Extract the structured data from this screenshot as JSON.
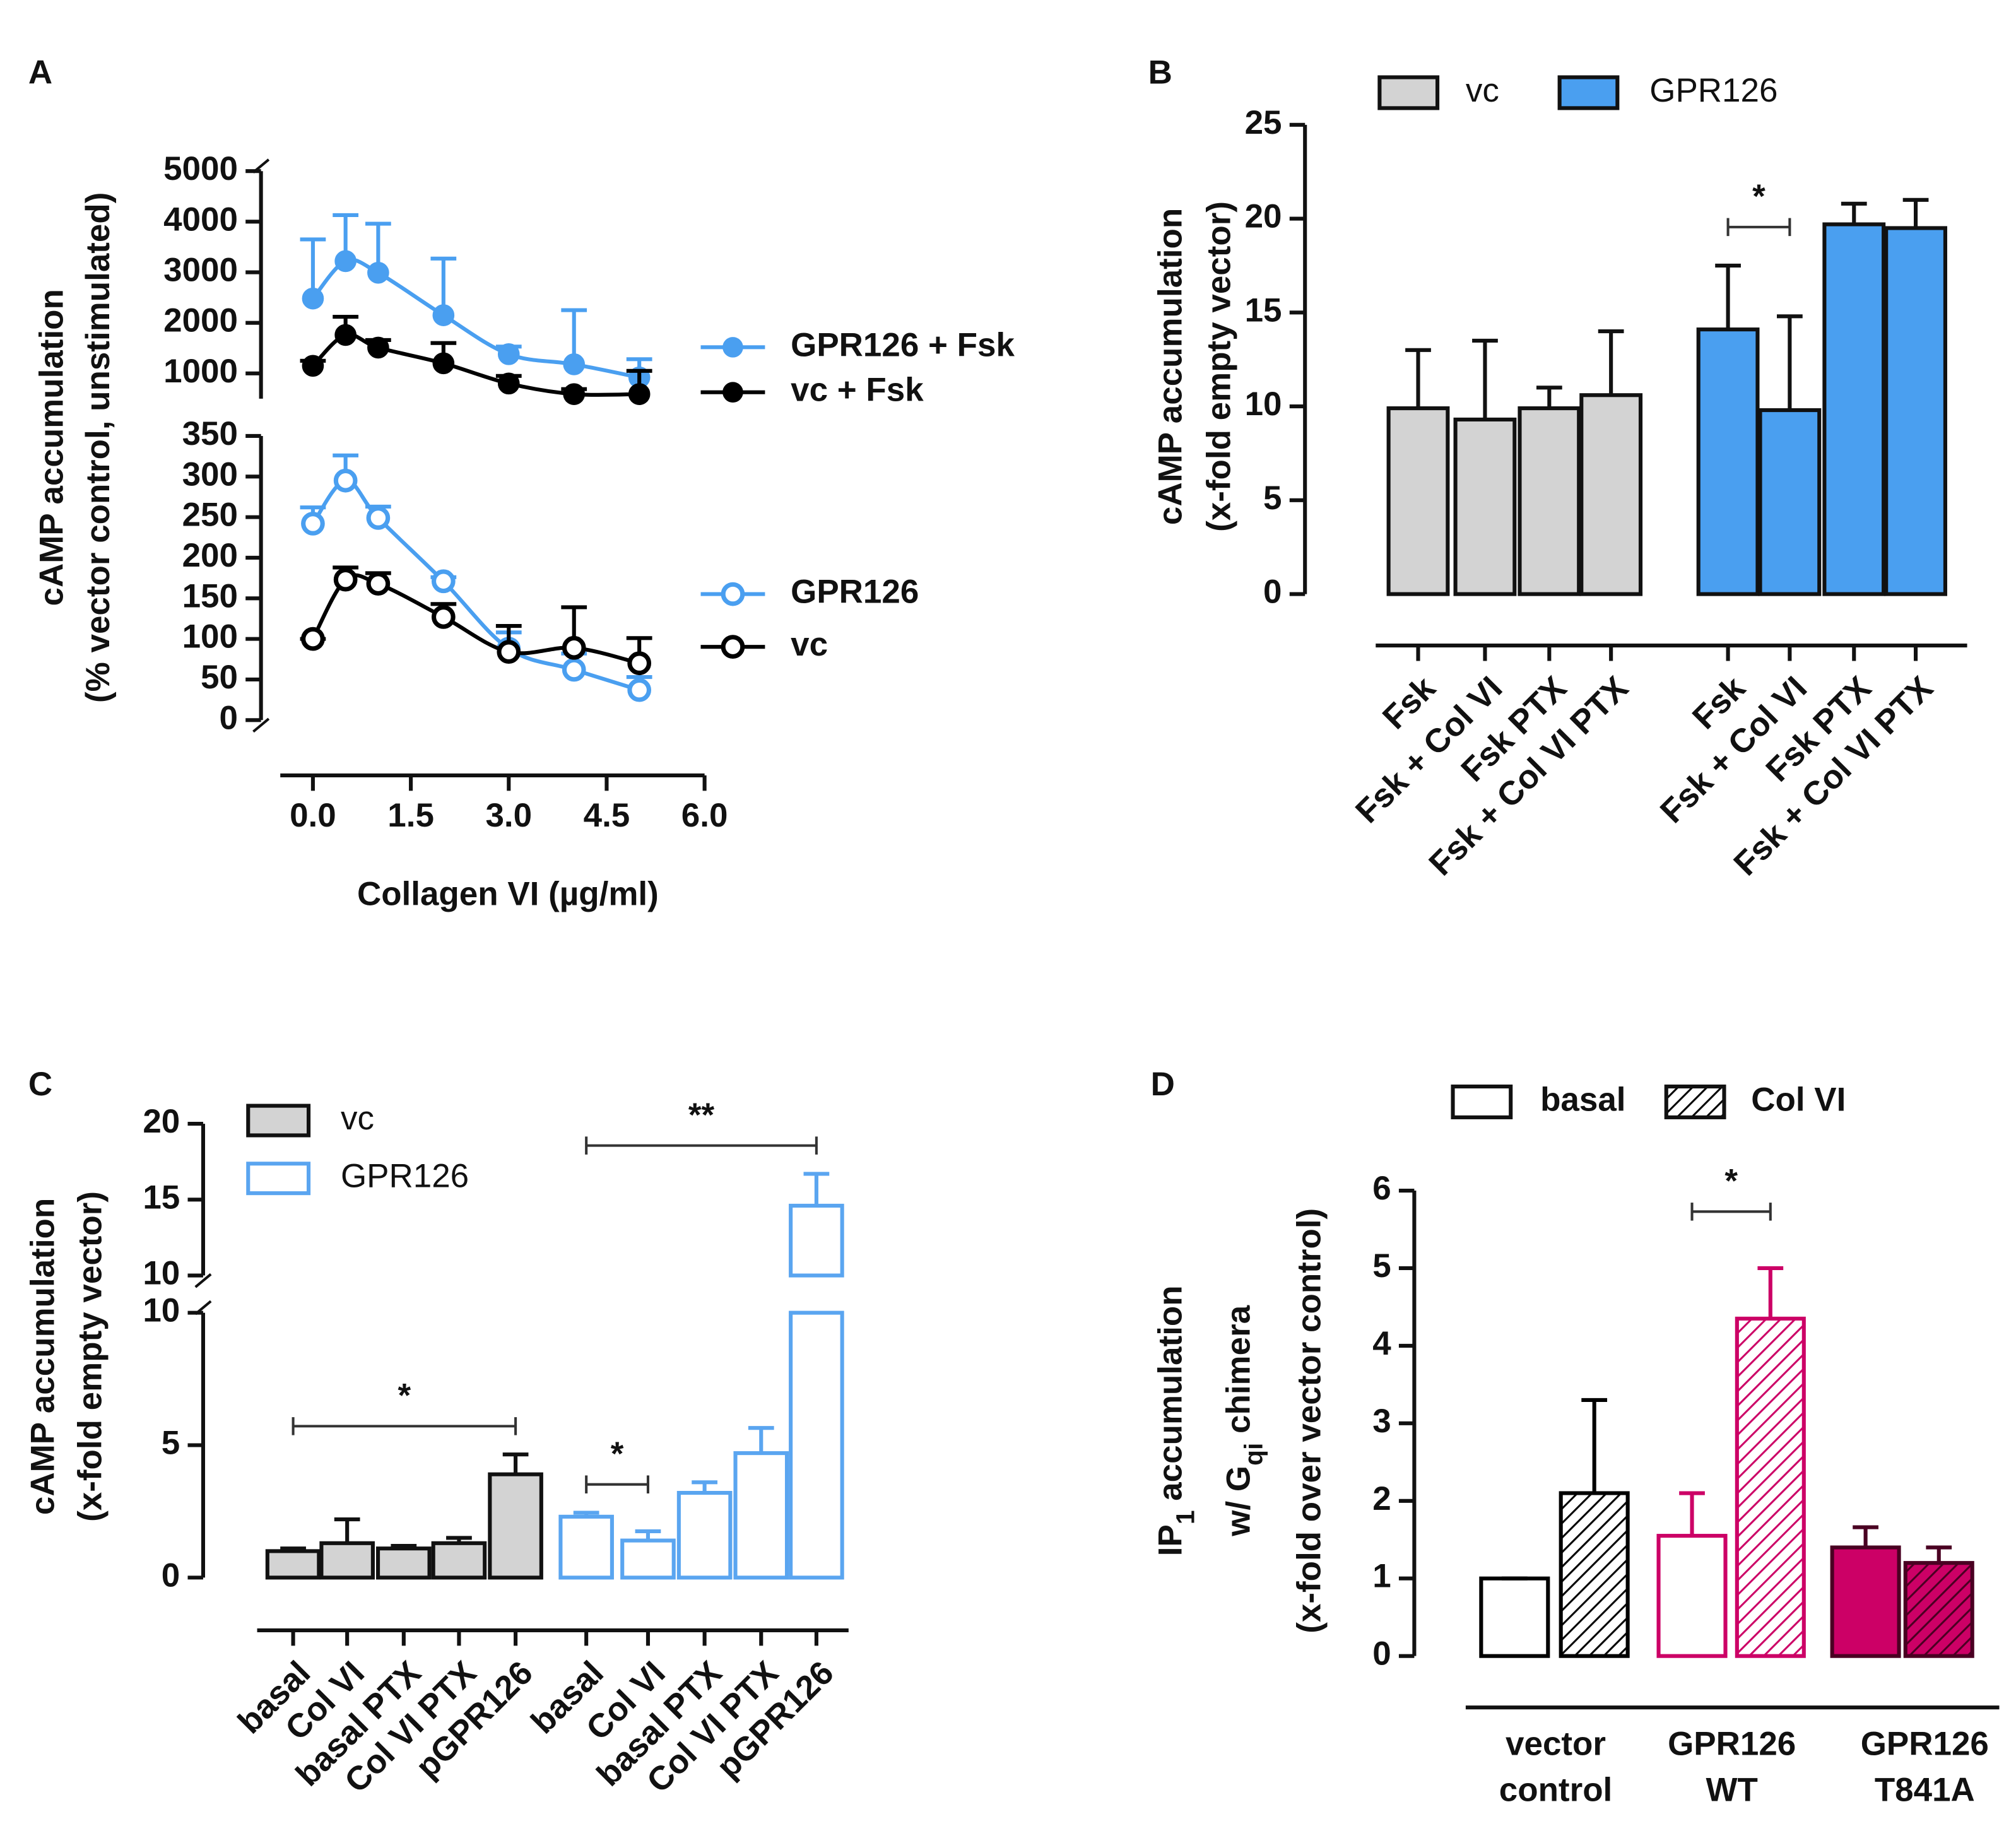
{
  "chart_data": [
    {
      "type": "scatter",
      "panel": "A",
      "y_label": [
        "cAMP accumulation",
        "(% vector control, unstimulated)"
      ],
      "x_label": "Collagen VI (µg/ml)",
      "x": [
        0,
        0.5,
        1,
        2,
        3,
        4,
        5
      ],
      "xlim": [
        -0.5,
        6
      ],
      "xticks": [
        {
          "value": 0,
          "label": "0.0"
        },
        {
          "value": 1.5,
          "label": "1.5"
        },
        {
          "value": 3,
          "label": "3.0"
        },
        {
          "value": 4.5,
          "label": "4.5"
        },
        {
          "value": 6,
          "label": "6.0"
        }
      ],
      "segments": [
        {
          "ylim": [
            500,
            5000
          ],
          "yticks": [
            1000,
            2000,
            3000,
            4000,
            5000
          ],
          "series": [
            {
              "name": "GPR126 + Fsk",
              "color": "#4a9ff0",
              "filled": true,
              "values": [
                2480,
                3220,
                2990,
                2150,
                1380,
                1180,
                920
              ],
              "errors": [
                1170,
                910,
                970,
                1120,
                150,
                1070,
                360
              ]
            },
            {
              "name": "vc + Fsk",
              "color": "#000000",
              "filled": true,
              "values": [
                1150,
                1760,
                1510,
                1200,
                800,
                590,
                590
              ],
              "errors": [
                100,
                360,
                150,
                400,
                150,
                100,
                460
              ]
            }
          ]
        },
        {
          "ylim": [
            0,
            350
          ],
          "yticks": [
            0,
            50,
            100,
            150,
            200,
            250,
            300,
            350
          ],
          "series": [
            {
              "name": "GPR126",
              "color": "#4a9ff0",
              "filled": false,
              "values": [
                242,
                295,
                249,
                171,
                88,
                62,
                37
              ],
              "errors": [
                20,
                31,
                14,
                5,
                20,
                20,
                16
              ]
            },
            {
              "name": "vc",
              "color": "#000000",
              "filled": false,
              "values": [
                100,
                173,
                168,
                127,
                84,
                89,
                70
              ],
              "errors": [
                0,
                15,
                13,
                16,
                32,
                50,
                31
              ]
            }
          ]
        }
      ]
    },
    {
      "type": "bar",
      "panel": "B",
      "y_label": [
        "cAMP accumulation",
        "(x-fold empty vector)"
      ],
      "categories": [
        "Fsk",
        "Fsk + Col VI",
        "Fsk PTX",
        "Fsk + Col VI PTX"
      ],
      "segments": [
        {
          "ylim": [
            0,
            25
          ],
          "yticks": [
            0,
            5,
            10,
            15,
            20,
            25
          ]
        }
      ],
      "series": [
        {
          "name": "vc",
          "color": "#d3d3d3",
          "filled": true,
          "values": [
            9.9,
            9.3,
            9.9,
            10.6
          ],
          "errors": [
            3.1,
            4.2,
            1.1,
            3.4
          ]
        },
        {
          "name": "GPR126",
          "color": "#4a9ff0",
          "filled": true,
          "values": [
            14.1,
            9.8,
            19.7,
            19.5
          ],
          "errors": [
            3.4,
            5.0,
            1.1,
            1.5
          ]
        }
      ],
      "significance": [
        {
          "label": "*",
          "bars": [
            [
              1,
              0
            ],
            [
              1,
              1
            ]
          ]
        }
      ]
    },
    {
      "type": "bar",
      "panel": "C",
      "y_label": [
        "cAMP accumulation",
        "(x-fold empty vector)"
      ],
      "categories": [
        "basal",
        "Col VI",
        "basal PTX",
        "Col VI PTX",
        "pGPR126"
      ],
      "segments": [
        {
          "ylim": [
            0,
            10
          ],
          "yticks": [
            0,
            5,
            10
          ]
        },
        {
          "ylim": [
            10,
            20
          ],
          "yticks": [
            10,
            15,
            20
          ]
        }
      ],
      "series": [
        {
          "name": "vc",
          "color": "#d3d3d3",
          "filled": true,
          "values": [
            1.0,
            1.3,
            1.1,
            1.3,
            3.9
          ],
          "errors": [
            0.1,
            0.9,
            0.1,
            0.2,
            0.75
          ]
        },
        {
          "name": "GPR126",
          "color": "#5aa5f0",
          "filled": false,
          "values": [
            2.3,
            1.4,
            3.2,
            4.7,
            14.6
          ],
          "errors": [
            0.15,
            0.35,
            0.4,
            0.95,
            2.1
          ]
        }
      ],
      "significance": [
        {
          "label": "*",
          "bars": [
            [
              0,
              0
            ],
            [
              0,
              4
            ]
          ]
        },
        {
          "label": "*",
          "bars": [
            [
              1,
              0
            ],
            [
              1,
              1
            ]
          ]
        },
        {
          "label": "**",
          "bars": [
            [
              1,
              0
            ],
            [
              1,
              4
            ]
          ]
        }
      ]
    },
    {
      "type": "bar",
      "panel": "D",
      "y_label": [
        [
          "IP",
          "1",
          " accumulation"
        ],
        [
          "w/ G",
          "qi",
          " chimera"
        ],
        [
          "(x-fold over vector control)"
        ]
      ],
      "categories": [
        [
          "vector",
          "control"
        ],
        [
          "GPR126",
          "WT"
        ],
        [
          "GPR126",
          "T841A"
        ]
      ],
      "colors": [
        "#000000",
        "#cc0066",
        "#cc0066"
      ],
      "filled": [
        false,
        false,
        true
      ],
      "segments": [
        {
          "ylim": [
            0,
            6
          ],
          "yticks": [
            0,
            1,
            2,
            3,
            4,
            5,
            6
          ]
        }
      ],
      "series": [
        {
          "name": "basal",
          "pattern": "open",
          "values": [
            1.0,
            1.55,
            1.4
          ],
          "errors": [
            0,
            0.55,
            0.26
          ]
        },
        {
          "name": "Col VI",
          "pattern": "hatch",
          "values": [
            2.1,
            4.35,
            1.2
          ],
          "errors": [
            1.2,
            0.65,
            0.2
          ]
        }
      ],
      "significance": [
        {
          "label": "*",
          "bars": [
            [
              0,
              1
            ],
            [
              1,
              1
            ]
          ]
        }
      ]
    }
  ]
}
